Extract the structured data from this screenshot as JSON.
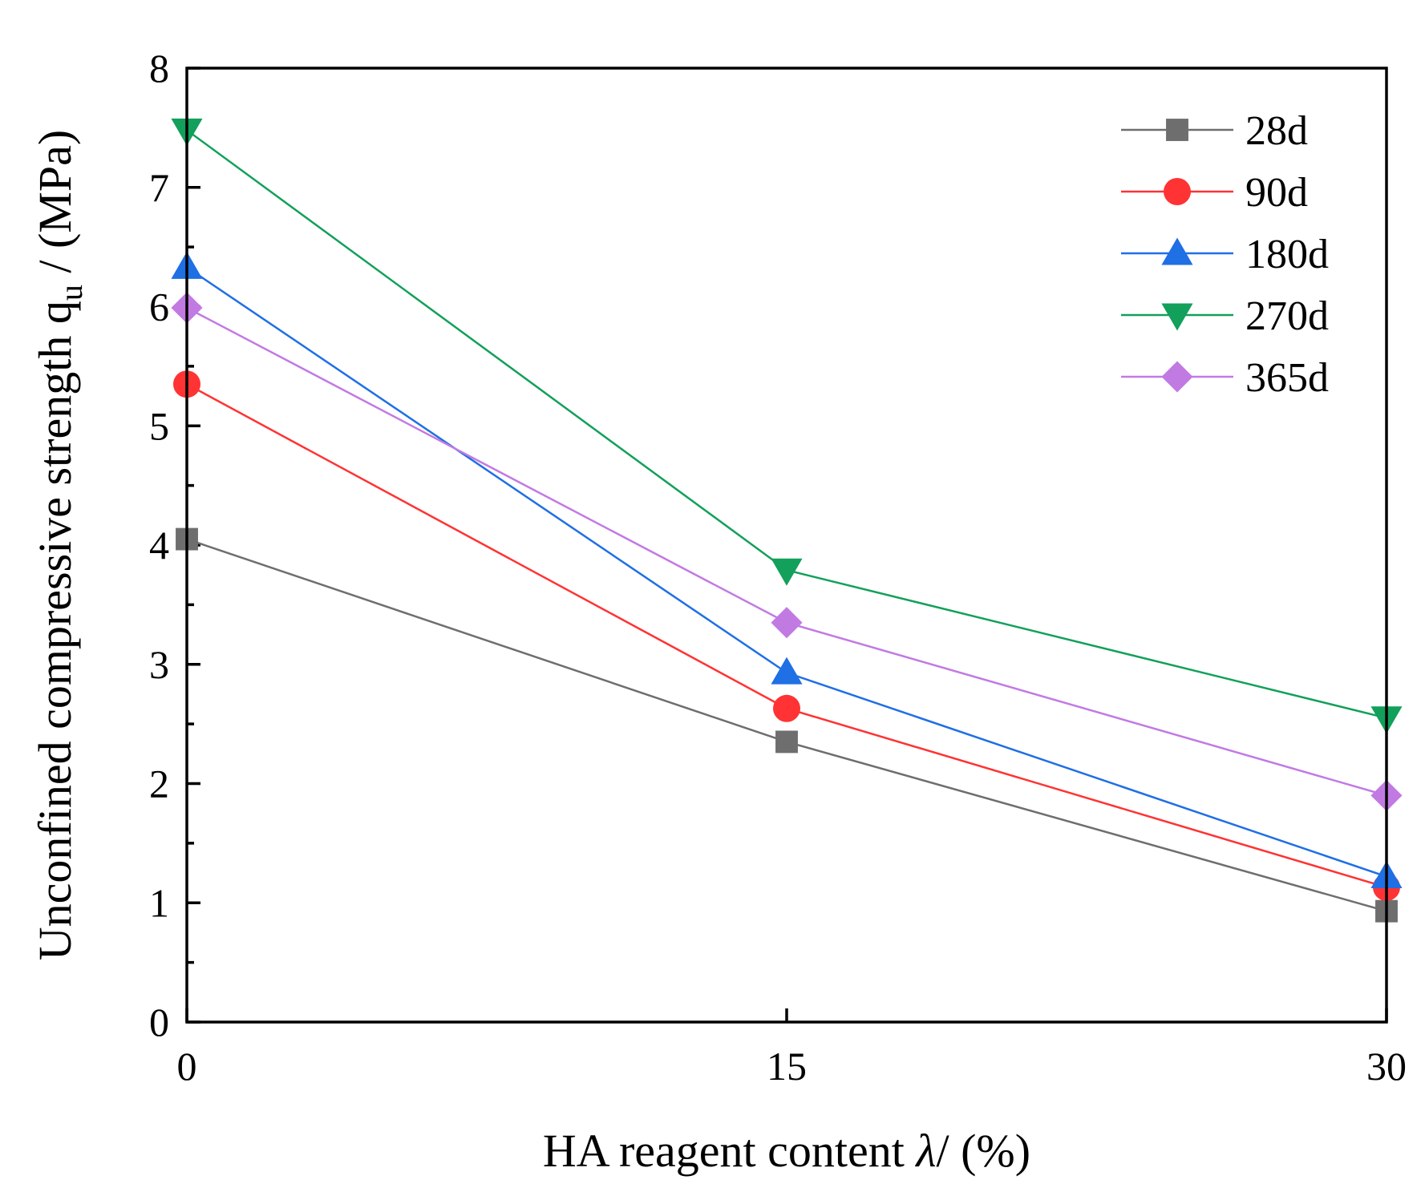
{
  "chart_data": {
    "type": "line",
    "title": "",
    "xlabel": "HA reagent content λ/ (%)",
    "xlabel_parts": {
      "prefix": "HA reagent content ",
      "symbol": "λ",
      "suffix": "/ (%)"
    },
    "ylabel": "Unconfined compressive strength qu / (MPa)",
    "ylabel_parts": {
      "prefix": "Unconfined compressive strength q",
      "subscript": "u",
      "suffix": " / (MPa)"
    },
    "x": [
      0,
      15,
      30
    ],
    "x_ticks": [
      0,
      15,
      30
    ],
    "y_ticks": [
      0,
      1,
      2,
      3,
      4,
      5,
      6,
      7,
      8
    ],
    "xlim": [
      0,
      30
    ],
    "ylim": [
      0,
      8
    ],
    "grid": false,
    "legend_position": "top-right",
    "series": [
      {
        "name": "28d",
        "values": [
          4.05,
          2.35,
          0.93
        ],
        "color": "#6e6e6e",
        "marker": "square"
      },
      {
        "name": "90d",
        "values": [
          5.35,
          2.63,
          1.13
        ],
        "color": "#ff3333",
        "marker": "circle"
      },
      {
        "name": "180d",
        "values": [
          6.33,
          2.93,
          1.22
        ],
        "color": "#1f6fe5",
        "marker": "triangle-up"
      },
      {
        "name": "270d",
        "values": [
          7.48,
          3.79,
          2.55
        ],
        "color": "#12a05a",
        "marker": "triangle-down"
      },
      {
        "name": "365d",
        "values": [
          5.99,
          3.35,
          1.9
        ],
        "color": "#c27ae3",
        "marker": "diamond"
      }
    ]
  }
}
